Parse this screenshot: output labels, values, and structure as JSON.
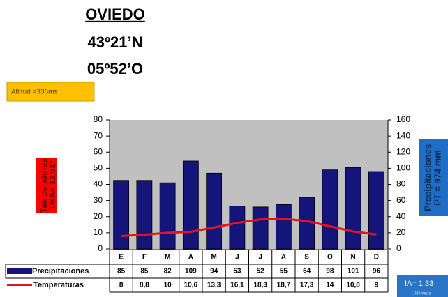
{
  "chart_data": {
    "type": "climograph",
    "title": "OVIEDO",
    "subtitle": [
      "43º21’N",
      "05º52’O"
    ],
    "altitude": "Altitud =336ms",
    "y_label": [
      "Temperaturas",
      "TMA= 12,91º"
    ],
    "y2_label": [
      "Precipitaciones",
      "PT = 974 mm"
    ],
    "index": {
      "label": "IA= 1,33",
      "note": "I. Húmeda"
    },
    "categories": [
      "E",
      "F",
      "M",
      "A",
      "M",
      "J",
      "J",
      "A",
      "S",
      "O",
      "N",
      "D"
    ],
    "series": [
      {
        "name": "Precipitaciones",
        "color": "#14147a",
        "type": "bar",
        "axis": "y2",
        "values": [
          85,
          85,
          82,
          109,
          94,
          53,
          52,
          55,
          64,
          98,
          101,
          96
        ]
      },
      {
        "name": "Temperaturas",
        "color": "#e3141c",
        "type": "line",
        "axis": "y",
        "values": [
          8,
          8.8,
          10,
          10.6,
          13.3,
          16.1,
          18.3,
          18.7,
          17.3,
          14,
          10.8,
          9
        ],
        "value_labels": [
          "8",
          "8,8",
          "10",
          "10,6",
          "13,3",
          "16,1",
          "18,3",
          "18,7",
          "17,3",
          "14",
          "10,8",
          "9"
        ]
      }
    ],
    "ylim": [
      0,
      80
    ],
    "yticks": [
      0,
      10,
      20,
      30,
      40,
      50,
      60,
      70,
      80
    ],
    "y2lim": [
      0,
      160
    ],
    "y2ticks": [
      0,
      20,
      40,
      60,
      80,
      100,
      120,
      140,
      160
    ],
    "plot_background": "#c0c0c0"
  }
}
